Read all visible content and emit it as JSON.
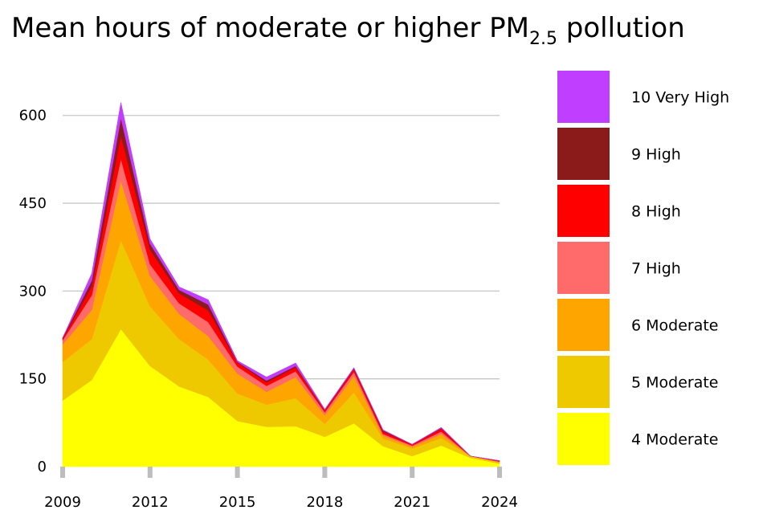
{
  "chart_data": {
    "type": "area",
    "stacked": true,
    "title": "Mean hours of moderate or higher PM",
    "title_subscript": "2.5",
    "title_suffix": " pollution",
    "xlabel": "",
    "ylabel": "",
    "x": [
      2009,
      2010,
      2011,
      2012,
      2013,
      2014,
      2015,
      2016,
      2017,
      2018,
      2019,
      2020,
      2021,
      2022,
      2023,
      2024
    ],
    "xlim": [
      2009,
      2024
    ],
    "ylim": [
      0,
      660
    ],
    "x_ticks": [
      2009,
      2012,
      2015,
      2018,
      2021,
      2024
    ],
    "x_tick_labels": [
      "2009",
      "2012",
      "2015",
      "2018",
      "2021",
      "2024"
    ],
    "y_ticks": [
      0,
      150,
      300,
      450,
      600
    ],
    "y_tick_labels": [
      "0",
      "150",
      "300",
      "450",
      "600"
    ],
    "grid": "horizontal",
    "legend_position": "right",
    "series": [
      {
        "name": "4 Moderate",
        "color": "#FFFF00",
        "values": [
          113,
          148,
          235,
          172,
          137,
          119,
          78,
          68,
          69,
          51,
          74,
          35,
          18,
          36,
          15,
          5
        ]
      },
      {
        "name": "5 Moderate",
        "color": "#EEC900",
        "values": [
          66,
          70,
          152,
          102,
          81,
          64,
          47,
          38,
          48,
          22,
          53,
          13,
          13,
          13,
          3,
          2
        ]
      },
      {
        "name": "6 Moderate",
        "color": "#FFA500",
        "values": [
          30,
          50,
          102,
          52,
          43,
          40,
          34,
          22,
          36,
          15,
          28,
          5,
          3,
          7,
          0,
          1
        ]
      },
      {
        "name": "7 High",
        "color": "#FF6A6A",
        "values": [
          7,
          25,
          37,
          20,
          18,
          24,
          12,
          10,
          10,
          5,
          7,
          3,
          2,
          4,
          0,
          1
        ]
      },
      {
        "name": "8 High",
        "color": "#FF0000",
        "values": [
          3,
          15,
          40,
          25,
          17,
          20,
          7,
          6,
          7,
          3,
          5,
          4,
          2,
          5,
          0,
          1
        ]
      },
      {
        "name": "9 High",
        "color": "#8B1A1A",
        "values": [
          1,
          10,
          30,
          10,
          6,
          10,
          1,
          3,
          2,
          1,
          1,
          2,
          0,
          1,
          0,
          0
        ]
      },
      {
        "name": "10 Very High",
        "color": "#BF3EFF",
        "values": [
          0,
          12,
          26,
          8,
          5,
          8,
          2,
          6,
          5,
          1,
          1,
          1,
          0,
          1,
          0,
          0
        ]
      }
    ]
  }
}
